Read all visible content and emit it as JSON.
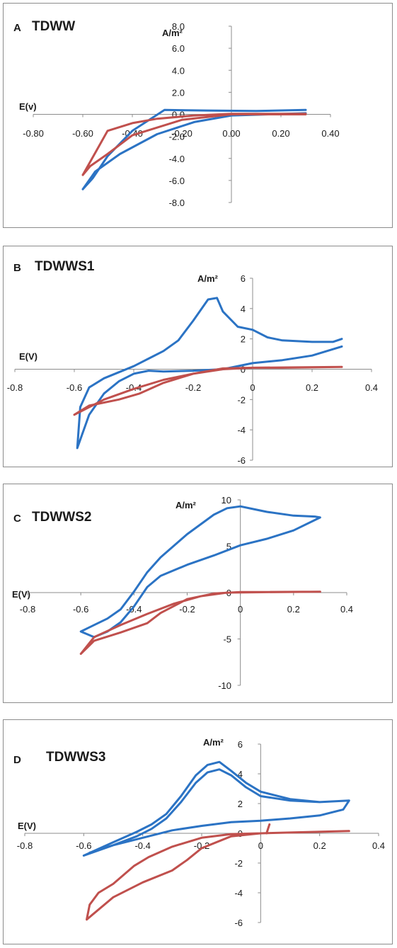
{
  "colors": {
    "series1": "#2b73c4",
    "series2": "#c0504d",
    "axis": "#8c8c8c",
    "border": "#8c8c8c"
  },
  "chart_data": [
    {
      "type": "line",
      "panel_letter": "A",
      "title": "TDWW",
      "xlabel": "E(v)",
      "ylabel": "A/m²",
      "xlim": [
        -0.8,
        0.4
      ],
      "ylim": [
        -8,
        8
      ],
      "xticks": [
        "-0.80",
        "-0.60",
        "-0.40",
        "-0.20",
        "0.00",
        "0.20",
        "0.40"
      ],
      "yticks": [
        "8.0",
        "6.0",
        "4.0",
        "2.0",
        "0.0",
        "-2.0",
        "-4.0",
        "-6.0",
        "-8.0"
      ],
      "grid": false,
      "series": [
        {
          "points": [
            [
              0.3,
              0.4
            ],
            [
              0.1,
              0.3
            ],
            [
              -0.1,
              0.35
            ],
            [
              -0.27,
              0.4
            ],
            [
              -0.4,
              -1.5
            ],
            [
              -0.5,
              -3.8
            ],
            [
              -0.56,
              -5.8
            ],
            [
              -0.6,
              -6.8
            ],
            [
              -0.55,
              -5.2
            ],
            [
              -0.45,
              -3.6
            ],
            [
              -0.3,
              -1.8
            ],
            [
              -0.15,
              -0.7
            ],
            [
              0.0,
              -0.1
            ],
            [
              0.15,
              0.0
            ],
            [
              0.3,
              0.1
            ]
          ]
        },
        {
          "points": [
            [
              0.3,
              0.0
            ],
            [
              0.0,
              0.0
            ],
            [
              -0.2,
              -0.5
            ],
            [
              -0.4,
              -1.9
            ],
            [
              -0.5,
              -3.6
            ],
            [
              -0.57,
              -4.7
            ],
            [
              -0.6,
              -5.5
            ],
            [
              -0.55,
              -3.5
            ],
            [
              -0.5,
              -1.5
            ],
            [
              -0.4,
              -0.8
            ],
            [
              -0.3,
              -0.4
            ],
            [
              -0.15,
              -0.1
            ],
            [
              0.0,
              0.05
            ],
            [
              0.3,
              0.05
            ]
          ]
        }
      ]
    },
    {
      "type": "line",
      "panel_letter": "B",
      "title": "TDWWS1",
      "xlabel": "E(V)",
      "ylabel": "A/m²",
      "xlim": [
        -0.8,
        0.4
      ],
      "ylim": [
        -6,
        6
      ],
      "xticks": [
        "-0.8",
        "-0.6",
        "-0.4",
        "-0.2",
        "0",
        "0.2",
        "0.4"
      ],
      "yticks": [
        "6",
        "4",
        "2",
        "0",
        "-2",
        "-4",
        "-6"
      ],
      "grid": false,
      "series": [
        {
          "points": [
            [
              0.3,
              2.0
            ],
            [
              0.27,
              1.8
            ],
            [
              0.2,
              1.8
            ],
            [
              0.1,
              1.9
            ],
            [
              0.05,
              2.1
            ],
            [
              0.0,
              2.6
            ],
            [
              -0.05,
              2.8
            ],
            [
              -0.1,
              3.8
            ],
            [
              -0.12,
              4.7
            ],
            [
              -0.15,
              4.6
            ],
            [
              -0.2,
              3.2
            ],
            [
              -0.25,
              1.9
            ],
            [
              -0.3,
              1.2
            ],
            [
              -0.35,
              0.7
            ],
            [
              -0.4,
              0.2
            ],
            [
              -0.5,
              -0.6
            ],
            [
              -0.55,
              -1.2
            ],
            [
              -0.58,
              -2.5
            ],
            [
              -0.59,
              -5.2
            ],
            [
              -0.55,
              -3.0
            ],
            [
              -0.5,
              -1.6
            ],
            [
              -0.45,
              -0.8
            ],
            [
              -0.4,
              -0.3
            ],
            [
              -0.35,
              -0.1
            ],
            [
              -0.3,
              -0.15
            ],
            [
              -0.2,
              -0.1
            ],
            [
              -0.1,
              0.0
            ],
            [
              0.0,
              0.4
            ],
            [
              0.1,
              0.6
            ],
            [
              0.2,
              0.9
            ],
            [
              0.3,
              1.5
            ]
          ]
        },
        {
          "points": [
            [
              0.3,
              0.15
            ],
            [
              0.1,
              0.1
            ],
            [
              0.0,
              0.1
            ],
            [
              -0.1,
              0.0
            ],
            [
              -0.2,
              -0.3
            ],
            [
              -0.3,
              -0.9
            ],
            [
              -0.38,
              -1.6
            ],
            [
              -0.45,
              -2.0
            ],
            [
              -0.55,
              -2.4
            ],
            [
              -0.6,
              -3.0
            ],
            [
              -0.5,
              -2.0
            ],
            [
              -0.4,
              -1.3
            ],
            [
              -0.3,
              -0.7
            ],
            [
              -0.2,
              -0.3
            ],
            [
              -0.1,
              0.05
            ],
            [
              0.0,
              0.1
            ],
            [
              0.3,
              0.15
            ]
          ]
        }
      ]
    },
    {
      "type": "line",
      "panel_letter": "C",
      "title": "TDWWS2",
      "xlabel": "E(V)",
      "ylabel": "A/m²",
      "xlim": [
        -0.8,
        0.4
      ],
      "ylim": [
        -10,
        10
      ],
      "xticks": [
        "-0.8",
        "-0.6",
        "-0.4",
        "-0.2",
        "0",
        "0.2",
        "0.4"
      ],
      "yticks": [
        "10",
        "5",
        "0",
        "-5",
        "-10"
      ],
      "grid": false,
      "series": [
        {
          "points": [
            [
              0.3,
              8.1
            ],
            [
              0.28,
              8.2
            ],
            [
              0.2,
              8.3
            ],
            [
              0.1,
              8.7
            ],
            [
              0.05,
              9.0
            ],
            [
              0.0,
              9.3
            ],
            [
              -0.05,
              9.1
            ],
            [
              -0.1,
              8.4
            ],
            [
              -0.2,
              6.3
            ],
            [
              -0.3,
              3.8
            ],
            [
              -0.35,
              2.2
            ],
            [
              -0.4,
              0.1
            ],
            [
              -0.45,
              -1.8
            ],
            [
              -0.5,
              -2.8
            ],
            [
              -0.55,
              -3.5
            ],
            [
              -0.6,
              -4.2
            ],
            [
              -0.55,
              -4.8
            ],
            [
              -0.5,
              -4.2
            ],
            [
              -0.45,
              -3.2
            ],
            [
              -0.4,
              -1.5
            ],
            [
              -0.35,
              0.6
            ],
            [
              -0.3,
              1.8
            ],
            [
              -0.2,
              3.0
            ],
            [
              -0.1,
              4.0
            ],
            [
              0.0,
              5.1
            ],
            [
              0.1,
              5.8
            ],
            [
              0.2,
              6.7
            ],
            [
              0.3,
              8.1
            ]
          ]
        },
        {
          "points": [
            [
              0.3,
              0.1
            ],
            [
              0.0,
              0.05
            ],
            [
              -0.1,
              -0.1
            ],
            [
              -0.2,
              -0.7
            ],
            [
              -0.3,
              -2.2
            ],
            [
              -0.35,
              -3.3
            ],
            [
              -0.45,
              -4.3
            ],
            [
              -0.55,
              -5.2
            ],
            [
              -0.6,
              -6.6
            ],
            [
              -0.55,
              -4.8
            ],
            [
              -0.45,
              -3.5
            ],
            [
              -0.35,
              -2.3
            ],
            [
              -0.25,
              -1.2
            ],
            [
              -0.15,
              -0.4
            ],
            [
              -0.05,
              0.0
            ],
            [
              0.3,
              0.1
            ]
          ]
        }
      ]
    },
    {
      "type": "line",
      "panel_letter": "D",
      "title": "TDWWS3",
      "xlabel": "E(V)",
      "ylabel": "A/m²",
      "xlim": [
        -0.8,
        0.4
      ],
      "ylim": [
        -6,
        6
      ],
      "xticks": [
        "-0.8",
        "-0.6",
        "-0.4",
        "-0.2",
        "0",
        "0.2",
        "0.4"
      ],
      "yticks": [
        "6",
        "4",
        "2",
        "0",
        "-2",
        "-4",
        "-6"
      ],
      "grid": false,
      "series": [
        {
          "points": [
            [
              0.3,
              2.2
            ],
            [
              0.2,
              2.1
            ],
            [
              0.1,
              2.3
            ],
            [
              0.0,
              2.8
            ],
            [
              -0.05,
              3.4
            ],
            [
              -0.1,
              4.2
            ],
            [
              -0.14,
              4.8
            ],
            [
              -0.18,
              4.6
            ],
            [
              -0.22,
              3.9
            ],
            [
              -0.27,
              2.5
            ],
            [
              -0.32,
              1.3
            ],
            [
              -0.37,
              0.6
            ],
            [
              -0.42,
              0.1
            ],
            [
              -0.5,
              -0.6
            ],
            [
              -0.6,
              -1.5
            ],
            [
              -0.5,
              -0.8
            ],
            [
              -0.42,
              -0.2
            ],
            [
              -0.37,
              0.3
            ],
            [
              -0.32,
              1.0
            ],
            [
              -0.27,
              2.1
            ],
            [
              -0.22,
              3.4
            ],
            [
              -0.18,
              4.1
            ],
            [
              -0.14,
              4.3
            ],
            [
              -0.1,
              3.9
            ],
            [
              -0.05,
              3.1
            ],
            [
              0.0,
              2.5
            ],
            [
              0.1,
              2.2
            ],
            [
              0.2,
              2.1
            ],
            [
              0.3,
              2.2
            ],
            [
              0.28,
              1.6
            ],
            [
              0.2,
              1.2
            ],
            [
              0.1,
              1.0
            ],
            [
              0.0,
              0.85
            ],
            [
              -0.1,
              0.75
            ],
            [
              -0.2,
              0.5
            ],
            [
              -0.3,
              0.2
            ],
            [
              -0.4,
              -0.3
            ],
            [
              -0.5,
              -0.8
            ],
            [
              -0.58,
              -1.3
            ]
          ]
        },
        {
          "points": [
            [
              0.3,
              0.15
            ],
            [
              0.2,
              0.1
            ],
            [
              0.1,
              0.05
            ],
            [
              0.0,
              0.0
            ],
            [
              -0.1,
              -0.2
            ],
            [
              -0.2,
              -1.0
            ],
            [
              -0.25,
              -1.8
            ],
            [
              -0.3,
              -2.5
            ],
            [
              -0.4,
              -3.3
            ],
            [
              -0.5,
              -4.3
            ],
            [
              -0.59,
              -5.8
            ],
            [
              -0.58,
              -4.8
            ],
            [
              -0.55,
              -4.0
            ],
            [
              -0.5,
              -3.4
            ],
            [
              -0.43,
              -2.2
            ],
            [
              -0.38,
              -1.6
            ],
            [
              -0.3,
              -0.9
            ],
            [
              -0.2,
              -0.3
            ],
            [
              -0.1,
              -0.05
            ],
            [
              0.0,
              0.0
            ],
            [
              0.1,
              0.05
            ],
            [
              0.3,
              0.15
            ]
          ]
        },
        {
          "points": [
            [
              0.02,
              0.0
            ],
            [
              0.03,
              0.6
            ]
          ]
        }
      ]
    }
  ]
}
